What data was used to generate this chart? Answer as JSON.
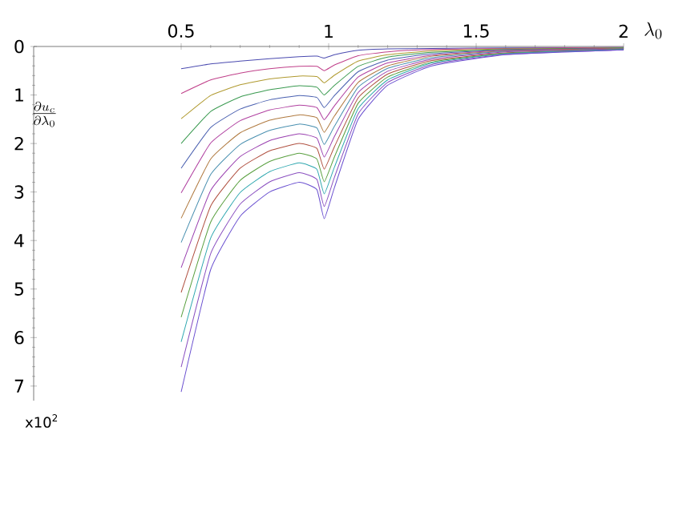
{
  "chart_data": {
    "type": "line",
    "xlabel": "\\lambda_0",
    "ylabel": "\\frac{\\partial u_c}{\\partial \\lambda_0}",
    "annotations": [
      "x10$^{2}$"
    ],
    "x": [
      0.5,
      0.6,
      0.7,
      0.8,
      0.9,
      0.96,
      0.985,
      1.02,
      1.1,
      1.2,
      1.35,
      1.6,
      2.0
    ],
    "xlim": [
      0,
      2
    ],
    "xticks": [
      0.5,
      1,
      1.5,
      2
    ],
    "ylim": [
      7.3,
      0
    ],
    "yticks": [
      0,
      1,
      2,
      3,
      4,
      5,
      6,
      7
    ],
    "grid": false,
    "marker": "none",
    "line_style": "solid",
    "series": [
      {
        "color": "#4b4bb0",
        "values": [
          0.46,
          0.36,
          0.3,
          0.25,
          0.21,
          0.2,
          0.24,
          0.17,
          0.08,
          0.05,
          0.04,
          0.03,
          0.02
        ]
      },
      {
        "color": "#c0408a",
        "values": [
          0.97,
          0.69,
          0.55,
          0.46,
          0.41,
          0.41,
          0.5,
          0.38,
          0.19,
          0.11,
          0.06,
          0.04,
          0.02
        ]
      },
      {
        "color": "#b09a30",
        "values": [
          1.49,
          1.01,
          0.79,
          0.67,
          0.61,
          0.62,
          0.75,
          0.59,
          0.3,
          0.17,
          0.09,
          0.05,
          0.03
        ]
      },
      {
        "color": "#3a9a50",
        "values": [
          2.0,
          1.34,
          1.04,
          0.89,
          0.81,
          0.84,
          1.0,
          0.8,
          0.41,
          0.22,
          0.12,
          0.06,
          0.03
        ]
      },
      {
        "color": "#4a60b0",
        "values": [
          2.51,
          1.67,
          1.29,
          1.1,
          1.01,
          1.05,
          1.26,
          1.01,
          0.52,
          0.28,
          0.15,
          0.07,
          0.04
        ]
      },
      {
        "color": "#b040a0",
        "values": [
          3.02,
          1.99,
          1.53,
          1.31,
          1.21,
          1.26,
          1.51,
          1.22,
          0.63,
          0.34,
          0.18,
          0.08,
          0.04
        ]
      },
      {
        "color": "#b07a40",
        "values": [
          3.54,
          2.32,
          1.78,
          1.52,
          1.41,
          1.47,
          1.77,
          1.43,
          0.74,
          0.4,
          0.2,
          0.09,
          0.04
        ]
      },
      {
        "color": "#4a90b0",
        "values": [
          4.04,
          2.64,
          2.02,
          1.73,
          1.6,
          1.68,
          2.02,
          1.64,
          0.84,
          0.45,
          0.23,
          0.1,
          0.05
        ]
      },
      {
        "color": "#9a40b0",
        "values": [
          4.56,
          2.97,
          2.27,
          1.94,
          1.8,
          1.89,
          2.28,
          1.85,
          0.95,
          0.51,
          0.26,
          0.11,
          0.05
        ]
      },
      {
        "color": "#b05040",
        "values": [
          5.07,
          3.29,
          2.51,
          2.15,
          2.0,
          2.1,
          2.53,
          2.06,
          1.06,
          0.57,
          0.29,
          0.13,
          0.06
        ]
      },
      {
        "color": "#5aa040",
        "values": [
          5.58,
          3.62,
          2.76,
          2.37,
          2.2,
          2.32,
          2.79,
          2.27,
          1.17,
          0.63,
          0.32,
          0.14,
          0.06
        ]
      },
      {
        "color": "#30a8b0",
        "values": [
          6.09,
          3.95,
          3.01,
          2.58,
          2.4,
          2.53,
          3.04,
          2.48,
          1.28,
          0.69,
          0.34,
          0.15,
          0.06
        ]
      },
      {
        "color": "#8a50c0",
        "values": [
          6.61,
          4.27,
          3.25,
          2.79,
          2.6,
          2.74,
          3.3,
          2.69,
          1.39,
          0.74,
          0.37,
          0.16,
          0.07
        ]
      },
      {
        "color": "#6a50d0",
        "values": [
          7.12,
          4.6,
          3.5,
          3.0,
          2.8,
          2.95,
          3.55,
          2.9,
          1.5,
          0.8,
          0.4,
          0.17,
          0.07
        ]
      }
    ]
  }
}
